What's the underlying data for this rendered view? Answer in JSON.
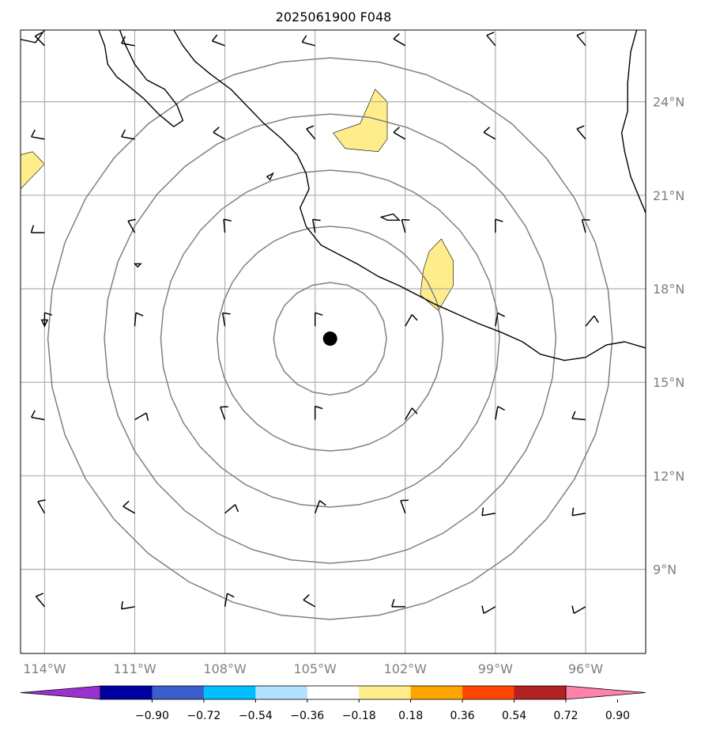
{
  "title": "2025061900 F048",
  "map": {
    "lon_range": [
      -114.8,
      -94.0
    ],
    "lat_range": [
      6.3,
      26.3
    ],
    "center_marker": {
      "lon": -104.5,
      "lat": 16.4
    },
    "range_rings_km": [
      200,
      400,
      600,
      800,
      1000
    ],
    "ring_color": "#808080",
    "grid_color": "#b0b0b0",
    "coast_color": "#000000"
  },
  "lon_ticks": [
    {
      "value": -114,
      "label": "114°W"
    },
    {
      "value": -111,
      "label": "111°W"
    },
    {
      "value": -108,
      "label": "108°W"
    },
    {
      "value": -105,
      "label": "105°W"
    },
    {
      "value": -102,
      "label": "102°W"
    },
    {
      "value": -99,
      "label": "99°W"
    },
    {
      "value": -96,
      "label": "96°W"
    }
  ],
  "lat_ticks": [
    {
      "value": 24,
      "label": "24°N"
    },
    {
      "value": 21,
      "label": "21°N"
    },
    {
      "value": 18,
      "label": "18°N"
    },
    {
      "value": 15,
      "label": "15°N"
    },
    {
      "value": 12,
      "label": "12°N"
    },
    {
      "value": 9,
      "label": "9°N"
    }
  ],
  "colorbar": {
    "colors": [
      "#9932cc",
      "#0000a0",
      "#3a5fcd",
      "#00bfff",
      "#b0e2ff",
      "#ffffff",
      "#ffec8b",
      "#ffa500",
      "#ff4500",
      "#b22222",
      "#ff82ab"
    ],
    "labels": [
      "−0.90",
      "−0.72",
      "−0.54",
      "−0.36",
      "−0.18",
      "0.18",
      "0.36",
      "0.54",
      "0.72",
      "0.90"
    ]
  },
  "shaded_areas": [
    {
      "value_range": "0.18–0.36",
      "color": "#ffec8b",
      "polygon": [
        [
          -103.5,
          23.3
        ],
        [
          -103.0,
          24.4
        ],
        [
          -102.6,
          24.0
        ],
        [
          -102.6,
          22.8
        ],
        [
          -102.9,
          22.4
        ],
        [
          -104.0,
          22.5
        ],
        [
          -104.4,
          23.0
        ]
      ]
    },
    {
      "value_range": "0.18–0.36",
      "color": "#ffec8b",
      "polygon": [
        [
          -101.2,
          19.2
        ],
        [
          -100.8,
          19.6
        ],
        [
          -100.4,
          18.9
        ],
        [
          -100.4,
          18.1
        ],
        [
          -100.9,
          17.3
        ],
        [
          -101.5,
          17.8
        ],
        [
          -101.4,
          18.6
        ]
      ]
    },
    {
      "value_range": "0.18–0.36",
      "color": "#ffec8b",
      "polygon": [
        [
          -114.8,
          22.3
        ],
        [
          -114.4,
          22.4
        ],
        [
          -114.0,
          22.0
        ],
        [
          -114.5,
          21.5
        ],
        [
          -114.8,
          21.2
        ]
      ]
    }
  ],
  "coastlines": [
    [
      [
        -109.7,
        26.3
      ],
      [
        -109.4,
        25.8
      ],
      [
        -109.0,
        25.3
      ],
      [
        -108.5,
        24.9
      ],
      [
        -107.8,
        24.4
      ],
      [
        -107.3,
        23.9
      ],
      [
        -106.7,
        23.3
      ],
      [
        -106.1,
        22.8
      ],
      [
        -105.6,
        22.3
      ],
      [
        -105.3,
        21.7
      ],
      [
        -105.2,
        21.2
      ],
      [
        -105.5,
        20.6
      ],
      [
        -105.3,
        20.0
      ],
      [
        -104.8,
        19.4
      ],
      [
        -104.2,
        19.1
      ],
      [
        -103.6,
        18.8
      ],
      [
        -102.9,
        18.4
      ],
      [
        -102.2,
        18.1
      ],
      [
        -101.6,
        17.8
      ],
      [
        -101.0,
        17.5
      ],
      [
        -100.3,
        17.2
      ],
      [
        -99.6,
        16.9
      ],
      [
        -98.8,
        16.6
      ],
      [
        -98.1,
        16.3
      ],
      [
        -97.5,
        15.9
      ],
      [
        -96.7,
        15.7
      ],
      [
        -96.0,
        15.8
      ],
      [
        -95.3,
        16.2
      ],
      [
        -94.7,
        16.3
      ],
      [
        -94.0,
        16.1
      ]
    ],
    [
      [
        -112.2,
        26.3
      ],
      [
        -112.0,
        25.8
      ],
      [
        -111.9,
        25.2
      ],
      [
        -111.6,
        24.8
      ],
      [
        -111.2,
        24.5
      ],
      [
        -110.7,
        24.1
      ],
      [
        -110.2,
        23.6
      ],
      [
        -109.7,
        23.2
      ],
      [
        -109.4,
        23.4
      ],
      [
        -109.6,
        23.9
      ],
      [
        -110.0,
        24.4
      ],
      [
        -110.6,
        24.7
      ],
      [
        -111.0,
        25.2
      ],
      [
        -111.3,
        25.8
      ],
      [
        -111.5,
        26.3
      ]
    ],
    [
      [
        -114.8,
        26.0
      ],
      [
        -114.3,
        25.9
      ],
      [
        -114.0,
        26.3
      ]
    ],
    [
      [
        -94.3,
        26.3
      ],
      [
        -94.5,
        25.6
      ],
      [
        -94.6,
        24.6
      ],
      [
        -94.6,
        23.7
      ],
      [
        -94.8,
        23.0
      ],
      [
        -94.7,
        22.4
      ],
      [
        -94.5,
        21.6
      ],
      [
        -94.2,
        20.9
      ],
      [
        -93.9,
        20.2
      ],
      [
        -93.6,
        19.5
      ],
      [
        -94.0,
        19.0
      ]
    ]
  ],
  "islands": [
    [
      [
        -102.8,
        20.3
      ],
      [
        -102.4,
        20.4
      ],
      [
        -102.2,
        20.2
      ],
      [
        -102.6,
        20.2
      ]
    ],
    [
      [
        -106.6,
        21.6
      ],
      [
        -106.4,
        21.7
      ],
      [
        -106.5,
        21.5
      ]
    ],
    [
      [
        -111.0,
        18.8
      ],
      [
        -110.8,
        18.8
      ],
      [
        -110.9,
        18.7
      ]
    ],
    [
      [
        -114.1,
        17.0
      ],
      [
        -113.9,
        17.0
      ],
      [
        -114.0,
        16.8
      ]
    ]
  ],
  "wind_barbs": {
    "lons": [
      -114,
      -111,
      -108,
      -105,
      -102,
      -99,
      -96
    ],
    "lats": [
      25.8,
      22.8,
      19.8,
      16.8,
      13.8,
      10.8,
      7.8
    ],
    "directions_deg": [
      [
        315,
        280,
        290,
        285,
        300,
        320,
        320
      ],
      [
        280,
        280,
        300,
        320,
        300,
        300,
        320
      ],
      [
        270,
        330,
        355,
        350,
        345,
        0,
        345
      ],
      [
        0,
        5,
        350,
        0,
        30,
        10,
        40
      ],
      [
        280,
        60,
        340,
        0,
        30,
        10,
        275
      ],
      [
        330,
        300,
        50,
        20,
        340,
        260,
        260
      ],
      [
        320,
        260,
        10,
        300,
        270,
        240,
        240
      ]
    ]
  }
}
